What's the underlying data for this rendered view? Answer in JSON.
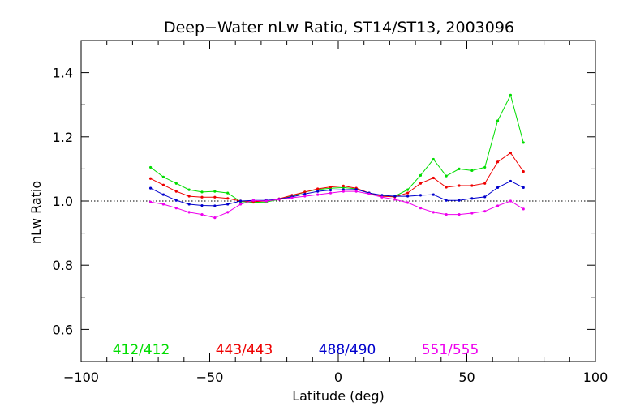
{
  "chart_data": {
    "type": "line",
    "title": "Deep−Water nLw Ratio, ST14/ST13, 2003096",
    "xlabel": "Latitude (deg)",
    "ylabel": "nLw Ratio",
    "xlim": [
      -100,
      100
    ],
    "ylim": [
      0.5,
      1.5
    ],
    "x_ticks": [
      -100,
      -50,
      0,
      50,
      100
    ],
    "x_tick_labels": [
      "−100",
      "−50",
      "0",
      "50",
      "100"
    ],
    "y_ticks": [
      0.6,
      0.8,
      1.0,
      1.2,
      1.4
    ],
    "y_tick_labels": [
      "0.6",
      "0.8",
      "1.0",
      "1.2",
      "1.4"
    ],
    "reference_line": {
      "y": 1.0,
      "style": "dotted"
    },
    "grid": false,
    "legend_placement": "bottom inside plot",
    "x": [
      -73,
      -68,
      -63,
      -58,
      -53,
      -48,
      -43,
      -38,
      -33,
      -28,
      -23,
      -18,
      -13,
      -8,
      -3,
      2,
      7,
      12,
      17,
      22,
      27,
      32,
      37,
      42,
      47,
      52,
      57,
      62,
      67,
      72
    ],
    "series": [
      {
        "name": "412/412",
        "color": "#00dd00",
        "values": [
          1.105,
          1.075,
          1.055,
          1.035,
          1.028,
          1.03,
          1.025,
          0.998,
          0.996,
          0.997,
          1.005,
          1.015,
          1.028,
          1.036,
          1.04,
          1.042,
          1.038,
          1.025,
          1.015,
          1.015,
          1.035,
          1.08,
          1.13,
          1.078,
          1.1,
          1.095,
          1.105,
          1.25,
          1.33,
          1.182
        ]
      },
      {
        "name": "443/443",
        "color": "#ee0000",
        "values": [
          1.07,
          1.05,
          1.03,
          1.015,
          1.012,
          1.012,
          1.008,
          1.0,
          0.998,
          1.0,
          1.007,
          1.018,
          1.028,
          1.038,
          1.044,
          1.047,
          1.04,
          1.025,
          1.015,
          1.013,
          1.025,
          1.055,
          1.072,
          1.043,
          1.048,
          1.048,
          1.055,
          1.122,
          1.15,
          1.092
        ]
      },
      {
        "name": "488/490",
        "color": "#0000cc",
        "values": [
          1.04,
          1.02,
          1.002,
          0.99,
          0.986,
          0.985,
          0.99,
          1.0,
          1.002,
          1.002,
          1.006,
          1.013,
          1.022,
          1.03,
          1.034,
          1.035,
          1.036,
          1.025,
          1.018,
          1.015,
          1.015,
          1.018,
          1.02,
          1.002,
          1.002,
          1.008,
          1.013,
          1.042,
          1.062,
          1.042
        ]
      },
      {
        "name": "551/555",
        "color": "#ee00ee",
        "values": [
          0.997,
          0.99,
          0.978,
          0.965,
          0.958,
          0.948,
          0.965,
          0.99,
          1.002,
          1.0,
          1.005,
          1.01,
          1.015,
          1.02,
          1.025,
          1.03,
          1.03,
          1.022,
          1.012,
          1.005,
          0.995,
          0.978,
          0.965,
          0.958,
          0.958,
          0.962,
          0.968,
          0.985,
          1.0,
          0.975
        ]
      }
    ]
  }
}
